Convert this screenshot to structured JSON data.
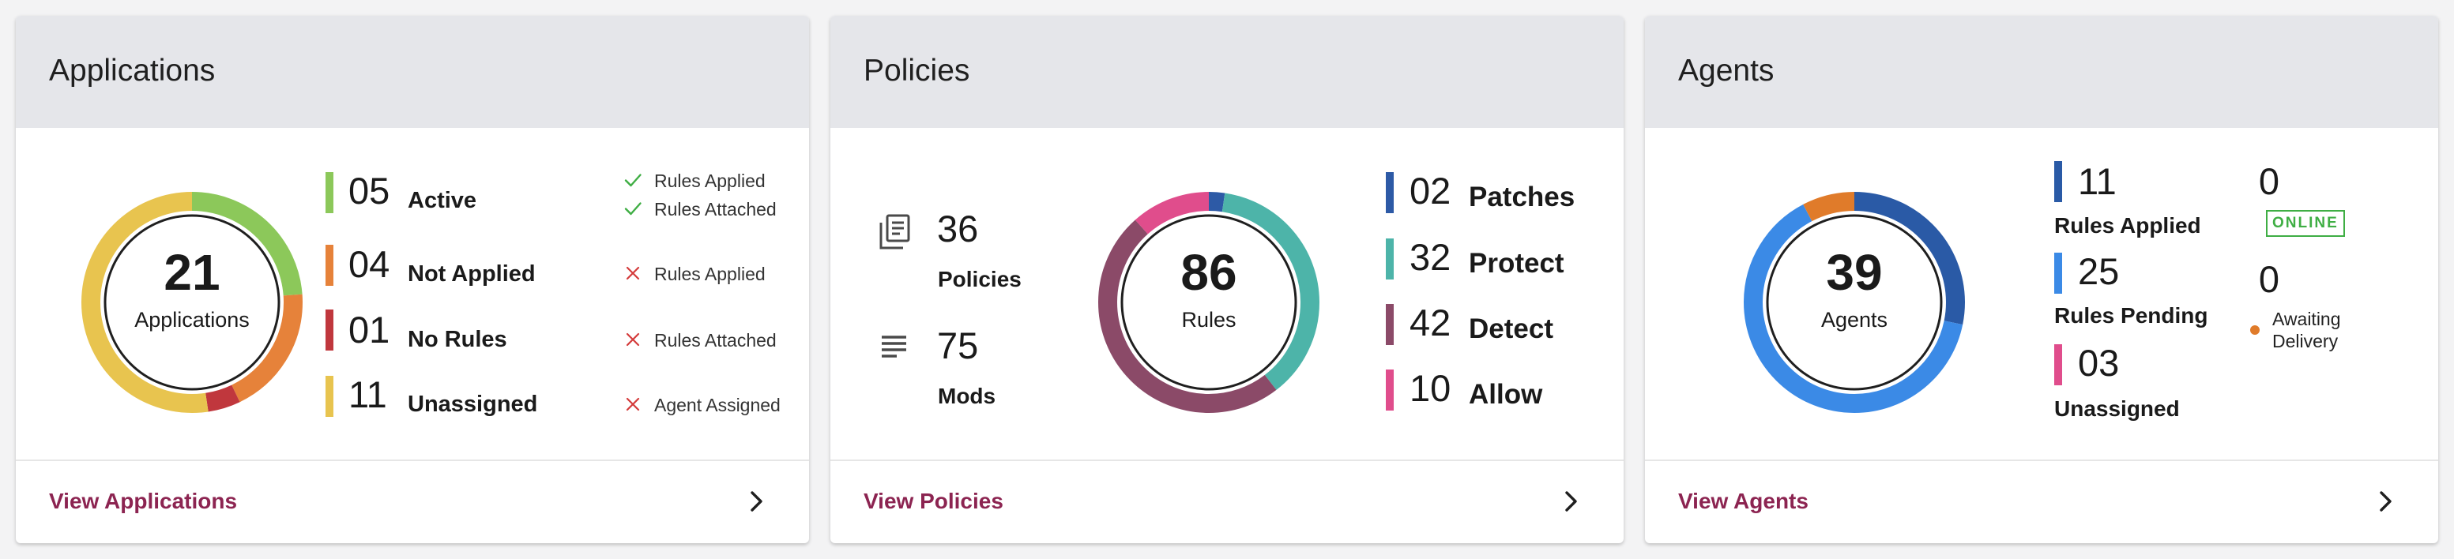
{
  "applications": {
    "title": "Applications",
    "total": "21",
    "total_label": "Applications",
    "rows": [
      {
        "count": "05",
        "label": "Active",
        "color": "#8cc85a"
      },
      {
        "count": "04",
        "label": "Not Applied",
        "color": "#e6823a"
      },
      {
        "count": "01",
        "label": "No Rules",
        "color": "#c0373d"
      },
      {
        "count": "11",
        "label": "Unassigned",
        "color": "#e8c44f"
      }
    ],
    "statuses": [
      {
        "text": "Rules Applied",
        "icon": "check-icon"
      },
      {
        "text": "Rules Attached",
        "icon": "check-icon"
      },
      {
        "text": "Rules Applied",
        "icon": "x-icon"
      },
      {
        "text": "Rules Attached",
        "icon": "x-icon"
      },
      {
        "text": "Agent Assigned",
        "icon": "x-icon"
      }
    ],
    "link": "View Applications"
  },
  "policies": {
    "title": "Policies",
    "stats": [
      {
        "count": "36",
        "label": "Policies",
        "icon": "policies-icon"
      },
      {
        "count": "75",
        "label": "Mods",
        "icon": "mods-icon"
      }
    ],
    "total": "86",
    "total_label": "Rules",
    "rows": [
      {
        "count": "02",
        "label": "Patches",
        "color": "#2d5aa6"
      },
      {
        "count": "32",
        "label": "Protect",
        "color": "#4db4a9"
      },
      {
        "count": "42",
        "label": "Detect",
        "color": "#8b4a68"
      },
      {
        "count": "10",
        "label": "Allow",
        "color": "#e04d8c"
      }
    ],
    "link": "View Policies"
  },
  "agents": {
    "title": "Agents",
    "total": "39",
    "total_label": "Agents",
    "rows": [
      {
        "count": "11",
        "label": "Rules Applied",
        "color": "#2a5aa6"
      },
      {
        "count": "25",
        "label": "Rules Pending",
        "color": "#3b8ae6"
      },
      {
        "count": "03",
        "label": "Unassigned",
        "color": "#e04d8c"
      }
    ],
    "online": {
      "count": "0",
      "badge": "ONLINE",
      "color": "#3fae44"
    },
    "awaiting": {
      "count": "0",
      "label_line1": "Awaiting",
      "label_line2": "Delivery",
      "color": "#e07b2a"
    },
    "link": "View Agents"
  },
  "colors": {
    "link": "#8c2451",
    "check": "#3fae44",
    "cross": "#d43b3b",
    "header_bg": "#e5e6ea",
    "apps_donut": [
      "#8cc85a",
      "#e6823a",
      "#c0373d",
      "#e8c44f"
    ],
    "policies_donut": [
      "#2d5aa6",
      "#4db4a9",
      "#8b4a68",
      "#e04d8c"
    ],
    "agents_donut": [
      "#2a5aa6",
      "#3b8ae6",
      "#e07b2a"
    ]
  }
}
